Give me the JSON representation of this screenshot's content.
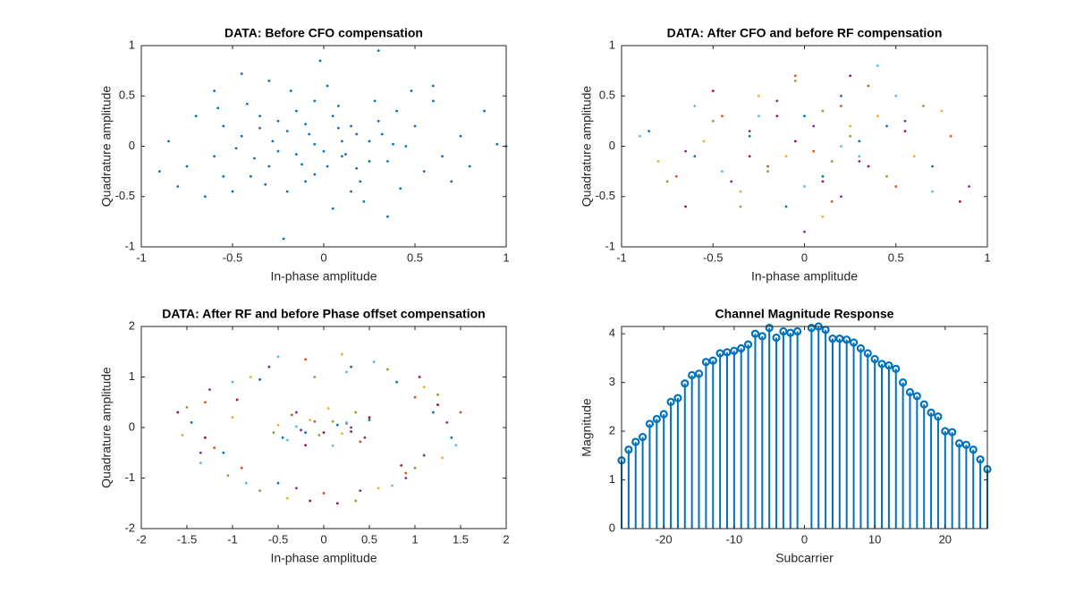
{
  "chart_data": [
    {
      "type": "scatter",
      "title": "DATA: Before CFO compensation",
      "xlabel": "In-phase amplitude",
      "ylabel": "Quadrature amplitude",
      "xlim": [
        -1,
        1
      ],
      "ylim": [
        -1,
        1
      ],
      "xticks": [
        -1,
        -0.5,
        0,
        0.5,
        1
      ],
      "yticks": [
        -1,
        -0.5,
        0,
        0.5,
        1
      ],
      "series": [
        {
          "color": "#0072BD",
          "x": [
            -0.05,
            0.1,
            -0.2,
            0.25,
            -0.3,
            0.05,
            -0.1,
            0.35,
            -0.45,
            0.15,
            -0.25,
            0.02,
            -0.15,
            0.3,
            -0.4,
            0.45,
            -0.05,
            0.2,
            -0.55,
            0.1,
            -0.35,
            0.4,
            -0.2,
            0.55,
            -0.6,
            0.0,
            -0.08,
            0.18,
            -0.28,
            0.32,
            -0.12,
            0.08,
            -0.42,
            0.5,
            -0.7,
            0.65,
            -0.18,
            0.22,
            -0.5,
            0.6,
            -0.75,
            0.75,
            -0.3,
            0.05,
            -0.85,
            0.88,
            -0.02,
            -0.22,
            0.3,
            -0.9,
            0.15,
            -0.38,
            0.28,
            -0.6,
            0.42,
            -0.1,
            0.12,
            -0.32,
            0.38,
            -0.48,
            0.7,
            -0.65,
            0.02,
            -0.25,
            0.18,
            -0.05,
            0.25,
            -0.15,
            0.08,
            -0.35,
            1.0,
            0.95,
            -0.55,
            0.6,
            -0.45,
            0.35,
            -0.8,
            0.8,
            0.48,
            -0.58
          ],
          "y": [
            0.02,
            -0.1,
            0.15,
            0.05,
            -0.2,
            0.3,
            -0.35,
            -0.15,
            0.1,
            0.2,
            -0.05,
            -0.2,
            0.35,
            0.25,
            -0.3,
            0.0,
            0.45,
            -0.35,
            0.2,
            0.05,
            0.3,
            0.35,
            -0.45,
            -0.25,
            -0.1,
            -0.05,
            0.12,
            -0.22,
            0.05,
            0.12,
            -0.18,
            0.4,
            0.42,
            0.2,
            0.3,
            -0.1,
            0.55,
            -0.55,
            -0.45,
            0.45,
            -0.2,
            0.1,
            0.65,
            -0.62,
            0.05,
            0.35,
            0.85,
            -0.92,
            0.95,
            -0.25,
            -0.45,
            -0.12,
            0.45,
            0.55,
            -0.42,
            0.22,
            -0.08,
            -0.38,
            0.02,
            -0.02,
            -0.35,
            -0.5,
            0.6,
            0.25,
            0.12,
            -0.28,
            -0.15,
            -0.08,
            0.18,
            0.18,
            0.0,
            0.02,
            -0.3,
            0.6,
            0.72,
            -0.7,
            -0.4,
            -0.2,
            0.55,
            0.38
          ]
        }
      ]
    },
    {
      "type": "scatter",
      "title": "DATA: After CFO and before RF compensation",
      "xlabel": "In-phase amplitude",
      "ylabel": "Quadrature amplitude",
      "xlim": [
        -1,
        1
      ],
      "ylim": [
        -1,
        1
      ],
      "xticks": [
        -1,
        -0.5,
        0,
        0.5,
        1
      ],
      "yticks": [
        -1,
        -0.5,
        0,
        0.5,
        1
      ],
      "series": [
        {
          "color": "#0072BD",
          "x": [
            -0.3,
            0.1,
            0.45,
            -0.6,
            0.2,
            -0.1,
            0.7,
            -0.85,
            0.3,
            0.0
          ],
          "y": [
            0.1,
            -0.3,
            0.2,
            -0.1,
            0.5,
            -0.6,
            -0.2,
            0.15,
            0.05,
            0.3
          ]
        },
        {
          "color": "#D95319",
          "x": [
            0.2,
            -0.2,
            0.5,
            -0.45,
            0.05,
            0.35,
            -0.7,
            0.8,
            -0.05,
            0.15
          ],
          "y": [
            0.4,
            -0.2,
            -0.4,
            0.3,
            -0.05,
            0.6,
            -0.3,
            0.1,
            0.7,
            -0.55
          ]
        },
        {
          "color": "#EDB120",
          "x": [
            -0.1,
            0.4,
            -0.35,
            0.6,
            -0.55,
            0.1,
            0.25,
            -0.25,
            0.75,
            -0.8
          ],
          "y": [
            -0.1,
            0.3,
            -0.45,
            -0.1,
            0.05,
            -0.7,
            0.2,
            0.5,
            0.35,
            -0.15
          ]
        },
        {
          "color": "#7E2F8E",
          "x": [
            0.05,
            -0.4,
            0.3,
            -0.15,
            0.55,
            -0.65,
            0.2,
            0.0,
            -0.3,
            0.9
          ],
          "y": [
            0.2,
            -0.35,
            -0.15,
            0.45,
            0.25,
            -0.05,
            -0.5,
            -0.85,
            0.15,
            -0.4
          ]
        },
        {
          "color": "#77AC30",
          "x": [
            -0.2,
            0.25,
            -0.5,
            0.45,
            0.1,
            -0.05,
            0.65,
            -0.35,
            0.15,
            -0.75
          ],
          "y": [
            -0.25,
            0.1,
            0.25,
            -0.3,
            0.35,
            0.65,
            0.4,
            -0.6,
            -0.15,
            -0.35
          ]
        },
        {
          "color": "#4DBEEE",
          "x": [
            0.3,
            -0.25,
            0.0,
            0.5,
            -0.6,
            0.2,
            -0.45,
            0.7,
            -0.9,
            0.4
          ],
          "y": [
            -0.1,
            0.3,
            -0.4,
            0.5,
            0.4,
            0.0,
            -0.25,
            -0.45,
            0.1,
            0.8
          ]
        },
        {
          "color": "#A2142F",
          "x": [
            -0.05,
            0.35,
            -0.3,
            0.1,
            -0.5,
            0.55,
            0.25,
            -0.15,
            0.85,
            -0.65
          ],
          "y": [
            0.05,
            -0.2,
            -0.1,
            -0.35,
            0.55,
            0.15,
            0.7,
            0.3,
            -0.55,
            -0.6
          ]
        }
      ]
    },
    {
      "type": "scatter",
      "title": "DATA: After RF and before Phase offset compensation",
      "xlabel": "In-phase amplitude",
      "ylabel": "Quadrature amplitude",
      "xlim": [
        -2,
        2
      ],
      "ylim": [
        -2,
        2
      ],
      "xticks": [
        -2,
        -1.5,
        -1,
        -0.5,
        0,
        0.5,
        1,
        1.5,
        2
      ],
      "yticks": [
        -2,
        -1,
        0,
        1,
        2
      ],
      "series": [
        {
          "color": "#0072BD",
          "x": [
            1.2,
            -1.1,
            0.3,
            -0.5,
            1.4,
            -1.45,
            0.8,
            -0.7,
            0.5,
            -0.45,
            0.15,
            -0.2
          ],
          "y": [
            0.3,
            -0.5,
            1.2,
            -1.1,
            -0.2,
            0.1,
            0.9,
            0.95,
            0.15,
            -0.2,
            0.05,
            -0.1
          ]
        },
        {
          "color": "#D95319",
          "x": [
            -1.3,
            0.9,
            1.0,
            -0.2,
            -0.9,
            1.5,
            0.0,
            -1.2,
            -0.35,
            0.4,
            -0.1,
            0.25
          ],
          "y": [
            0.5,
            -0.9,
            0.6,
            1.35,
            -0.8,
            0.3,
            -1.3,
            -0.4,
            0.25,
            -0.28,
            0.12,
            0.08
          ]
        },
        {
          "color": "#EDB120",
          "x": [
            0.6,
            -0.8,
            1.3,
            -1.55,
            0.2,
            1.1,
            -0.4,
            -1.0,
            0.05,
            -0.5,
            0.2,
            -0.15
          ],
          "y": [
            -1.2,
            1.0,
            -0.6,
            -0.15,
            1.45,
            0.8,
            -1.4,
            0.2,
            0.38,
            0.05,
            -0.12,
            0.15
          ]
        },
        {
          "color": "#7E2F8E",
          "x": [
            -0.6,
            1.35,
            -1.35,
            0.9,
            0.4,
            -0.3,
            1.1,
            -1.25,
            0.45,
            -0.3,
            0.3,
            -0.25
          ],
          "y": [
            1.2,
            0.1,
            -0.5,
            -1.0,
            -1.25,
            -1.2,
            -0.55,
            0.75,
            -0.2,
            0.3,
            0.0,
            -0.05
          ]
        },
        {
          "color": "#77AC30",
          "x": [
            1.0,
            -1.5,
            -0.1,
            0.7,
            -0.7,
            1.25,
            -1.05,
            0.35,
            -0.55,
            0.35,
            -0.05,
            0.1
          ],
          "y": [
            -0.8,
            0.4,
            1.0,
            1.15,
            -1.25,
            0.65,
            -0.95,
            -1.45,
            -0.1,
            0.3,
            -0.15,
            0.12
          ]
        },
        {
          "color": "#4DBEEE",
          "x": [
            -1.0,
            0.25,
            1.45,
            -0.5,
            0.75,
            -1.35,
            0.55,
            -0.85,
            0.1,
            -0.4,
            0.25,
            -0.3
          ],
          "y": [
            0.9,
            1.1,
            -0.35,
            1.4,
            -1.15,
            -0.7,
            1.3,
            -1.1,
            -0.36,
            -0.25,
            0.1,
            0.02
          ]
        },
        {
          "color": "#A2142F",
          "x": [
            0.15,
            -0.15,
            1.25,
            -1.3,
            1.05,
            -0.95,
            0.85,
            -1.6,
            -0.2,
            0.5,
            0.0,
            0.3
          ],
          "y": [
            -1.5,
            -1.45,
            0.45,
            -0.2,
            1.0,
            0.55,
            -0.75,
            0.3,
            -0.35,
            0.2,
            -0.1,
            -0.08
          ]
        }
      ]
    },
    {
      "type": "stem",
      "title": "Channel Magnitude Response",
      "xlabel": "Subcarrier",
      "ylabel": "Magnitude",
      "xlim": [
        -26,
        26
      ],
      "ylim": [
        0,
        4.15
      ],
      "xticks": [
        -20,
        -10,
        0,
        10,
        20
      ],
      "yticks": [
        0,
        1,
        2,
        3,
        4
      ],
      "color": "#0072BD",
      "x": [
        -26,
        -25,
        -24,
        -23,
        -22,
        -21,
        -20,
        -19,
        -18,
        -17,
        -16,
        -15,
        -14,
        -13,
        -12,
        -11,
        -10,
        -9,
        -8,
        -7,
        -6,
        -5,
        -4,
        -3,
        -2,
        -1,
        1,
        2,
        3,
        4,
        5,
        6,
        7,
        8,
        9,
        10,
        11,
        12,
        13,
        14,
        15,
        16,
        17,
        18,
        19,
        20,
        21,
        22,
        23,
        24,
        25,
        26
      ],
      "values": [
        1.4,
        1.62,
        1.78,
        1.88,
        2.15,
        2.25,
        2.35,
        2.6,
        2.68,
        2.98,
        3.15,
        3.18,
        3.42,
        3.45,
        3.6,
        3.62,
        3.65,
        3.7,
        3.78,
        4.0,
        3.95,
        4.12,
        3.92,
        4.05,
        4.02,
        4.05,
        4.12,
        4.15,
        4.08,
        3.9,
        3.9,
        3.88,
        3.82,
        3.7,
        3.6,
        3.48,
        3.38,
        3.35,
        3.28,
        3.0,
        2.8,
        2.72,
        2.55,
        2.38,
        2.3,
        2.0,
        1.98,
        1.75,
        1.72,
        1.62,
        1.42,
        1.22
      ]
    }
  ]
}
